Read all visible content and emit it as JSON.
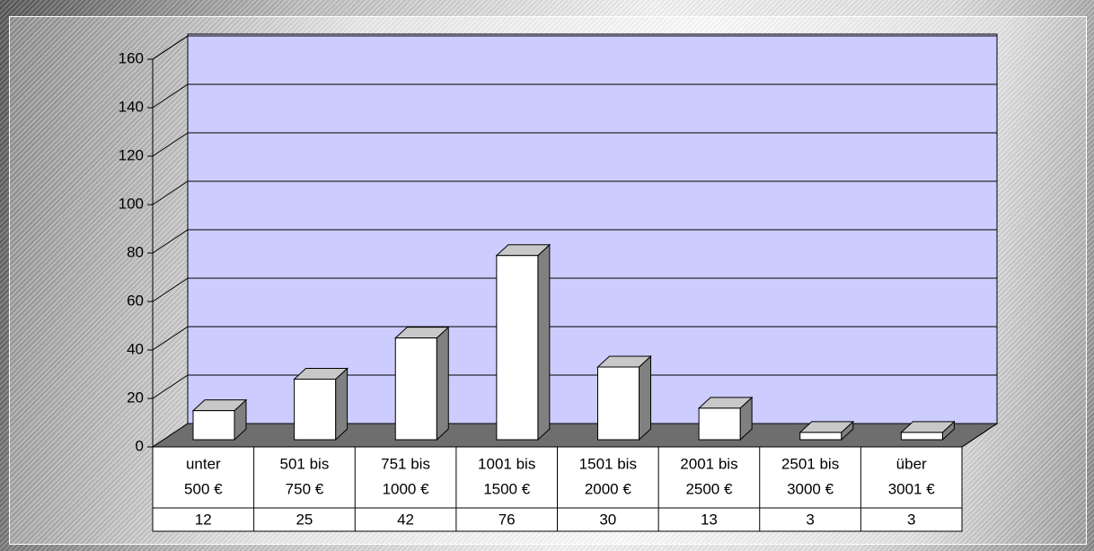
{
  "chart_data": {
    "type": "bar3d",
    "categories": [
      [
        "unter",
        "500 €"
      ],
      [
        "501 bis",
        "750 €"
      ],
      [
        "751 bis",
        "1000 €"
      ],
      [
        "1001 bis",
        "1500 €"
      ],
      [
        "1501 bis",
        "2000 €"
      ],
      [
        "2001 bis",
        "2500 €"
      ],
      [
        "2501 bis",
        "3000 €"
      ],
      [
        "über",
        "3001 €"
      ]
    ],
    "values": [
      12,
      25,
      42,
      76,
      30,
      13,
      3,
      3
    ],
    "color": "#ffffff",
    "wall_color": "#ccccff",
    "floor_color": "#6e6e6e",
    "ylim": [
      0,
      160
    ],
    "yticks": [
      0,
      20,
      40,
      60,
      80,
      100,
      120,
      140,
      160
    ],
    "grid": true
  }
}
